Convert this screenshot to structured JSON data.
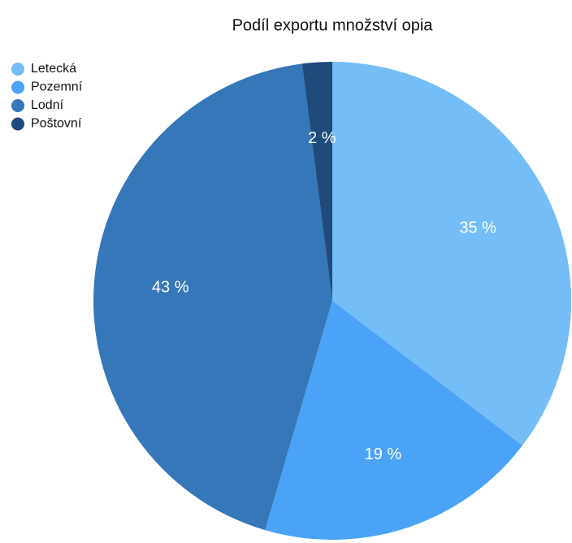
{
  "chart_data": {
    "type": "pie",
    "title": "Podíl exportu množství opia",
    "categories": [
      "Letecká",
      "Pozemní",
      "Lodní",
      "Poštovní"
    ],
    "values": [
      35,
      19,
      43,
      2
    ],
    "value_labels": [
      "35 %",
      "19 %",
      "43 %",
      "2 %"
    ],
    "colors": [
      "#74bdf7",
      "#4aa3f7",
      "#3577b8",
      "#1e4a7c"
    ],
    "legend": "top-left"
  }
}
